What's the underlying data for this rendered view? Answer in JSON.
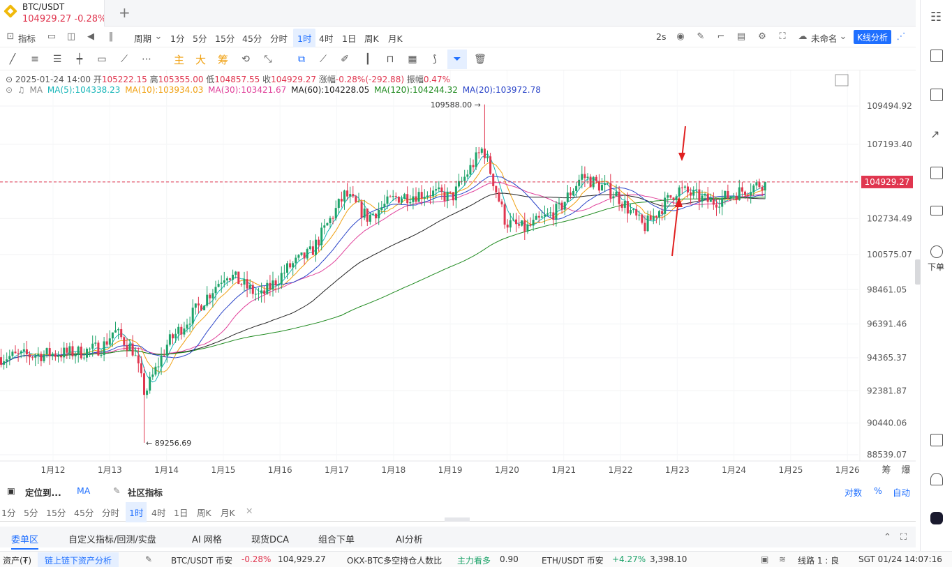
{
  "tab": {
    "symbol": "BTC/USDT",
    "price_change": "104929.27  -0.28%"
  },
  "toolbar1": {
    "indicator": "指标",
    "period": "周期",
    "periods": [
      "1分",
      "5分",
      "15分",
      "45分",
      "分时",
      "1时",
      "4时",
      "1日",
      "周K",
      "月K"
    ],
    "active_period": "1时",
    "interval": "2s",
    "layout_name": "未命名",
    "kline_analysis": "K线分析"
  },
  "toolbar2": {
    "main": "主",
    "big": "大",
    "chips": "筹"
  },
  "info": {
    "datetime": "2025-01-24 14:00",
    "open_label": "开",
    "open": "105222.15",
    "high_label": "高",
    "high": "105355.00",
    "low_label": "低",
    "low": "104857.55",
    "close_label": "收",
    "close": "104929.27",
    "change_label": "涨幅",
    "change": "-0.28%(-292.88)",
    "amplitude_label": "振幅",
    "amplitude": "0.47%",
    "ma_title": "MA",
    "ma": [
      {
        "label": "MA(5):104338.23",
        "color": "#16b5b8"
      },
      {
        "label": "MA(10):103934.03",
        "color": "#f0a010"
      },
      {
        "label": "MA(30):103421.67",
        "color": "#e0409a"
      },
      {
        "label": "MA(60):104228.05",
        "color": "#222222"
      },
      {
        "label": "MA(120):104244.32",
        "color": "#1f8a1f"
      },
      {
        "label": "MA(20):103972.78",
        "color": "#2a44c8"
      }
    ]
  },
  "chart_data": {
    "type": "candlestick",
    "symbol": "BTC/USDT",
    "interval": "1h",
    "y_ticks": [
      109494.92,
      107193.4,
      104929.27,
      102734.49,
      100575.07,
      98461.05,
      96391.46,
      94365.37,
      92381.87,
      90440.06,
      88539.07
    ],
    "y_tick_labels": [
      "109494.92",
      "107193.40",
      "104929.27",
      "102734.49",
      "100575.07",
      "98461.05",
      "96391.46",
      "94365.37",
      "92381.87",
      "90440.06",
      "88539.07"
    ],
    "x_labels": [
      "1月12",
      "1月13",
      "1月14",
      "1月15",
      "1月16",
      "1月17",
      "1月18",
      "1月19",
      "1月20",
      "1月21",
      "1月22",
      "1月23",
      "1月24",
      "1月25",
      "1月26"
    ],
    "ylim": [
      88539.07,
      109494.92
    ],
    "last_price": 104929.27,
    "last_price_label": "104929.27",
    "high_marker": {
      "value": 109588.0,
      "label": "109588.00 →"
    },
    "low_marker": {
      "value": 89256.69,
      "label": "← 89256.69"
    },
    "up_color": "#1ea36a",
    "down_color": "#e0364f",
    "daily_closes": [
      94400,
      94600,
      94700,
      95000,
      96000,
      94800,
      92200,
      95200,
      97000,
      99500,
      98000,
      99800,
      100700,
      104200,
      102800,
      104000,
      104300,
      104000,
      107000,
      102500,
      102100,
      103300,
      105300,
      104200,
      102200,
      104500,
      103700,
      104929
    ],
    "axis_corner": [
      "筹",
      "爆"
    ]
  },
  "indicator_bar": {
    "locate": "定位到...",
    "ma": "MA",
    "community": "社区指标",
    "log": "对数",
    "percent": "%",
    "auto": "自动"
  },
  "period_bar": {
    "periods": [
      "1分",
      "5分",
      "15分",
      "45分",
      "分时",
      "1时",
      "4时",
      "1日",
      "周K",
      "月K"
    ],
    "active": "1时"
  },
  "panel_tabs": [
    "委单区",
    "自定义指标/回测/实盘",
    "AI 网格",
    "现货DCA",
    "组合下单",
    "AI分析"
  ],
  "status": {
    "assets": "资产(₮)",
    "onchain": "链上链下资产分析",
    "btc_pair": "BTC/USDT 币安",
    "btc_change": "-0.28%",
    "btc_price": "104,929.27",
    "okx": "OKX-BTC多空持仓人数比",
    "okx_label": "主力看多",
    "okx_value": "0.90",
    "eth_pair": "ETH/USDT 币安",
    "eth_change": "+4.27%",
    "eth_price": "3,398.10",
    "line": "线路 1 : 良",
    "time": "SGT 01/24 14:07:16"
  },
  "rightbar": {
    "order": "下单"
  }
}
